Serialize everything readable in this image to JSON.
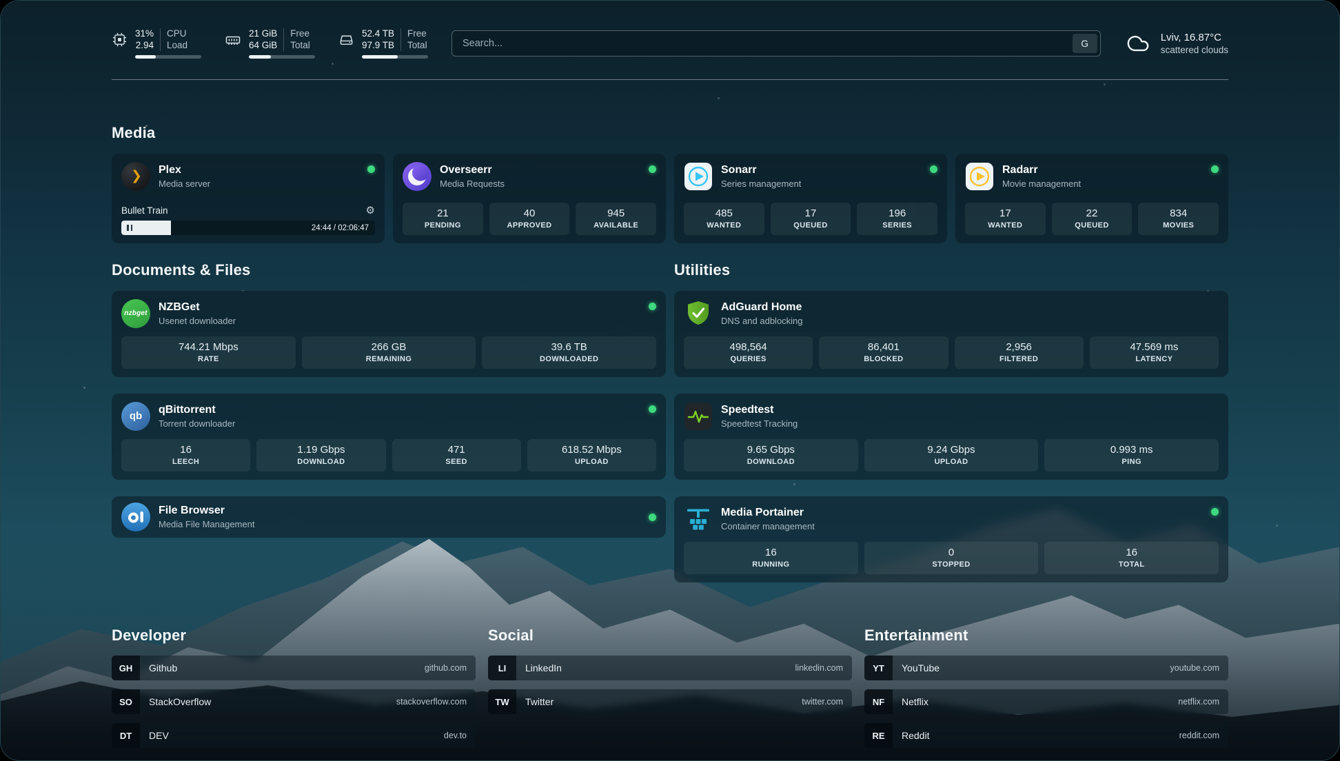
{
  "topbar": {
    "cpu": {
      "icon": "cpu-chip",
      "value": "31%",
      "value2": "2.94",
      "label1": "CPU",
      "label2": "Load",
      "percent": 31
    },
    "memory": {
      "icon": "memory-stick",
      "value": "21 GiB",
      "value2": "64 GiB",
      "label1": "Free",
      "label2": "Total",
      "percent": 33
    },
    "storage": {
      "icon": "hard-drive",
      "value": "52.4 TB",
      "value2": "97.9 TB",
      "label1": "Free",
      "label2": "Total",
      "percent": 54
    },
    "search": {
      "placeholder": "Search...",
      "engine_button": "G"
    },
    "weather": {
      "icon": "scattered-clouds",
      "location": "Lviv, 16.87°C",
      "condition": "scattered clouds"
    }
  },
  "icons": {
    "gear": "⚙",
    "plex_chevron": "❯"
  },
  "sections": {
    "media": {
      "title": "Media",
      "cards": {
        "plex": {
          "name": "Plex",
          "subtitle": "Media server",
          "status": "online",
          "now_playing": "Bullet Train",
          "time": "24:44 / 02:06:47",
          "progress_percent": 19.5
        },
        "overseerr": {
          "name": "Overseerr",
          "subtitle": "Media Requests",
          "status": "online",
          "stats": [
            {
              "value": "21",
              "label": "PENDING"
            },
            {
              "value": "40",
              "label": "APPROVED"
            },
            {
              "value": "945",
              "label": "AVAILABLE"
            }
          ]
        },
        "sonarr": {
          "name": "Sonarr",
          "subtitle": "Series management",
          "status": "online",
          "stats": [
            {
              "value": "485",
              "label": "WANTED"
            },
            {
              "value": "17",
              "label": "QUEUED"
            },
            {
              "value": "196",
              "label": "SERIES"
            }
          ]
        },
        "radarr": {
          "name": "Radarr",
          "subtitle": "Movie management",
          "status": "online",
          "stats": [
            {
              "value": "17",
              "label": "WANTED"
            },
            {
              "value": "22",
              "label": "QUEUED"
            },
            {
              "value": "834",
              "label": "MOVIES"
            }
          ]
        }
      }
    },
    "documents": {
      "title": "Documents & Files",
      "cards": {
        "nzbget": {
          "name": "NZBGet",
          "subtitle": "Usenet downloader",
          "status": "online",
          "icon_text": "nzbget",
          "stats": [
            {
              "value": "744.21 Mbps",
              "label": "RATE"
            },
            {
              "value": "266 GB",
              "label": "REMAINING"
            },
            {
              "value": "39.6 TB",
              "label": "DOWNLOADED"
            }
          ]
        },
        "qbittorrent": {
          "name": "qBittorrent",
          "subtitle": "Torrent downloader",
          "status": "online",
          "icon_text": "qb",
          "stats": [
            {
              "value": "16",
              "label": "LEECH"
            },
            {
              "value": "1.19 Gbps",
              "label": "DOWNLOAD"
            },
            {
              "value": "471",
              "label": "SEED"
            },
            {
              "value": "618.52 Mbps",
              "label": "UPLOAD"
            }
          ]
        },
        "filebrowser": {
          "name": "File Browser",
          "subtitle": "Media File Management",
          "status": "online"
        }
      }
    },
    "utilities": {
      "title": "Utilities",
      "cards": {
        "adguard": {
          "name": "AdGuard Home",
          "subtitle": "DNS and adblocking",
          "stats": [
            {
              "value": "498,564",
              "label": "QUERIES"
            },
            {
              "value": "86,401",
              "label": "BLOCKED"
            },
            {
              "value": "2,956",
              "label": "FILTERED"
            },
            {
              "value": "47.569 ms",
              "label": "LATENCY"
            }
          ]
        },
        "speedtest": {
          "name": "Speedtest",
          "subtitle": "Speedtest Tracking",
          "stats": [
            {
              "value": "9.65 Gbps",
              "label": "DOWNLOAD"
            },
            {
              "value": "9.24 Gbps",
              "label": "UPLOAD"
            },
            {
              "value": "0.993 ms",
              "label": "PING"
            }
          ]
        },
        "portainer": {
          "name": "Media Portainer",
          "subtitle": "Container management",
          "status": "online",
          "stats": [
            {
              "value": "16",
              "label": "RUNNING"
            },
            {
              "value": "0",
              "label": "STOPPED"
            },
            {
              "value": "16",
              "label": "TOTAL"
            }
          ]
        }
      }
    }
  },
  "bookmarks": {
    "groups": [
      {
        "title": "Developer",
        "links": [
          {
            "abbr": "GH",
            "name": "Github",
            "url": "github.com"
          },
          {
            "abbr": "SO",
            "name": "StackOverflow",
            "url": "stackoverflow.com"
          },
          {
            "abbr": "DT",
            "name": "DEV",
            "url": "dev.to"
          }
        ]
      },
      {
        "title": "Social",
        "links": [
          {
            "abbr": "LI",
            "name": "LinkedIn",
            "url": "linkedin.com"
          },
          {
            "abbr": "TW",
            "name": "Twitter",
            "url": "twitter.com"
          }
        ]
      },
      {
        "title": "Entertainment",
        "links": [
          {
            "abbr": "YT",
            "name": "YouTube",
            "url": "youtube.com"
          },
          {
            "abbr": "NF",
            "name": "Netflix",
            "url": "netflix.com"
          },
          {
            "abbr": "RE",
            "name": "Reddit",
            "url": "reddit.com"
          }
        ]
      }
    ]
  },
  "colors": {
    "status_online": "#3ed97f",
    "plex": "#e5a00d",
    "sonarr": "#35c5f4",
    "radarr": "#ffc230",
    "overseerr": "#6f4ee2",
    "nzbget": "#3db54a",
    "qbittorrent": "#3a76b8",
    "filebrowser": "#2e7fc0",
    "adguard": "#63b22e",
    "speedtest": "#7ed321",
    "portainer": "#29afd4"
  }
}
